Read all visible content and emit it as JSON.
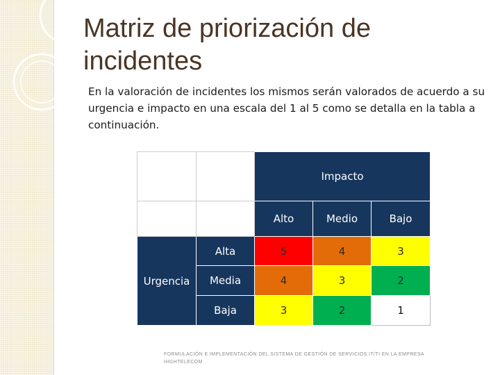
{
  "title": "Matriz de priorización de incidentes",
  "body_text": "En la valoración de incidentes los mismos serán valorados de acuerdo a su urgencia e impacto en una escala del 1 al  5 como se detalla en la tabla a continuación.",
  "matrix": {
    "impact_header": "Impacto",
    "impact_levels": [
      "Alto",
      "Medio",
      "Bajo"
    ],
    "urgency_header": "Urgencia",
    "rows": [
      {
        "label": "Alta",
        "values": [
          "5",
          "4",
          "3"
        ],
        "colors": [
          "#ff0000",
          "#e36c09",
          "#ffff00"
        ]
      },
      {
        "label": "Media",
        "values": [
          "4",
          "3",
          "2"
        ],
        "colors": [
          "#e36c09",
          "#ffff00",
          "#00b050"
        ]
      },
      {
        "label": "Baja",
        "values": [
          "3",
          "2",
          "1"
        ],
        "colors": [
          "#ffff00",
          "#00b050",
          "#ffffff"
        ]
      }
    ],
    "header_color": "#17365d"
  },
  "footer": "FORMULACIÓN E IMPLEMENTACIÓN DEL SISTEMA DE GESTIÓN DE SERVICIOS IT/TI EN LA EMPRESA HIGHTELECOM"
}
